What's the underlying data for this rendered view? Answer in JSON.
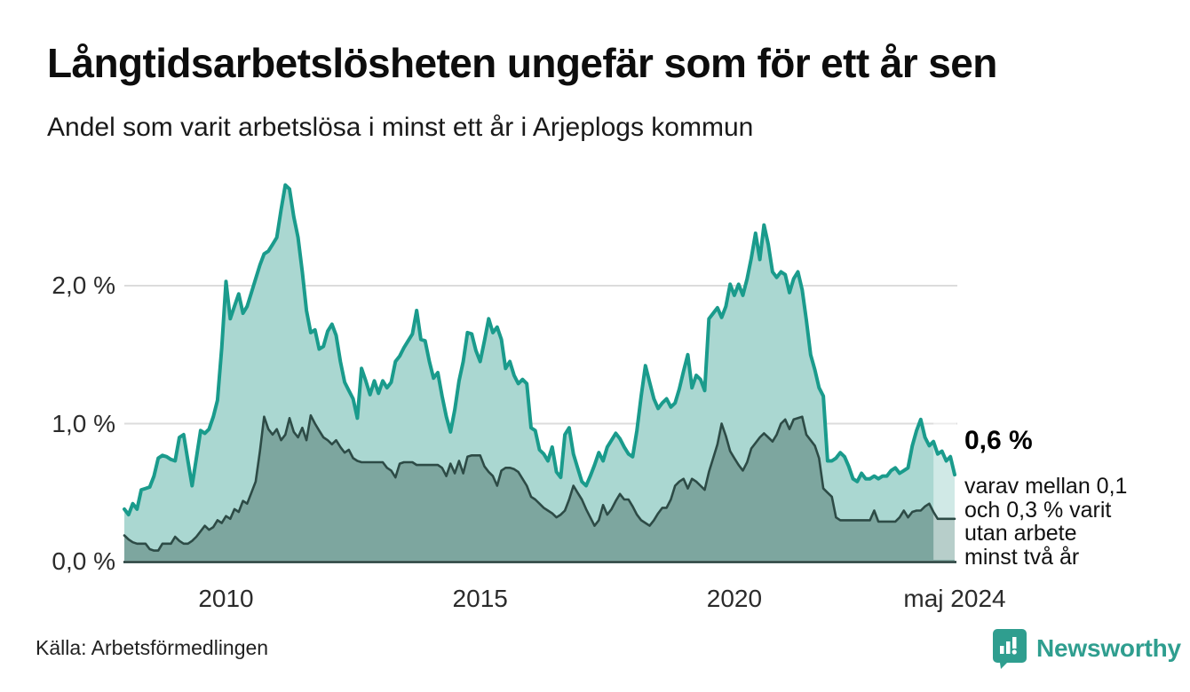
{
  "header": {
    "title": "Långtidsarbetslösheten ungefär som för ett år sen",
    "subtitle": "Andel som varit arbetslösa i minst ett år i Arjeplogs kommun"
  },
  "chart_data": {
    "type": "area",
    "interval": "monthly",
    "start": "2008-01",
    "end": "2024-05",
    "unit": "%",
    "grid": true,
    "ylim": [
      0,
      2.8
    ],
    "y_ticks": [
      {
        "label": "2,0 %",
        "value": 2.0
      },
      {
        "label": "1,0 %",
        "value": 1.0
      },
      {
        "label": "0,0 %",
        "value": 0.0
      }
    ],
    "x_ticks": [
      {
        "label": "2010",
        "index": 24
      },
      {
        "label": "2015",
        "index": 84
      },
      {
        "label": "2020",
        "index": 144
      },
      {
        "label": "maj 2024",
        "index": 196
      }
    ],
    "recent_fade_from_index": 191,
    "series": [
      {
        "name": "arbetslösa minst ett år",
        "stroke": "#1a9b8c",
        "fill": "#aad7d1",
        "values": [
          0.38,
          0.34,
          0.42,
          0.38,
          0.52,
          0.53,
          0.54,
          0.62,
          0.75,
          0.77,
          0.76,
          0.74,
          0.73,
          0.9,
          0.92,
          0.73,
          0.55,
          0.75,
          0.95,
          0.93,
          0.96,
          1.05,
          1.17,
          1.55,
          2.03,
          1.76,
          1.85,
          1.94,
          1.8,
          1.85,
          1.95,
          2.05,
          2.15,
          2.23,
          2.25,
          2.3,
          2.35,
          2.55,
          2.73,
          2.7,
          2.5,
          2.35,
          2.1,
          1.82,
          1.66,
          1.68,
          1.54,
          1.56,
          1.67,
          1.72,
          1.64,
          1.45,
          1.3,
          1.24,
          1.18,
          1.04,
          1.4,
          1.31,
          1.21,
          1.31,
          1.22,
          1.31,
          1.26,
          1.3,
          1.45,
          1.49,
          1.55,
          1.6,
          1.65,
          1.82,
          1.61,
          1.6,
          1.45,
          1.33,
          1.37,
          1.2,
          1.05,
          0.94,
          1.1,
          1.31,
          1.45,
          1.66,
          1.65,
          1.53,
          1.45,
          1.6,
          1.76,
          1.66,
          1.7,
          1.61,
          1.4,
          1.45,
          1.35,
          1.29,
          1.32,
          1.29,
          0.97,
          0.95,
          0.81,
          0.78,
          0.73,
          0.83,
          0.65,
          0.61,
          0.92,
          0.97,
          0.78,
          0.68,
          0.58,
          0.55,
          0.62,
          0.7,
          0.79,
          0.73,
          0.83,
          0.88,
          0.93,
          0.89,
          0.83,
          0.78,
          0.76,
          0.95,
          1.2,
          1.42,
          1.3,
          1.18,
          1.11,
          1.15,
          1.18,
          1.12,
          1.15,
          1.25,
          1.38,
          1.5,
          1.26,
          1.35,
          1.32,
          1.24,
          1.76,
          1.8,
          1.84,
          1.77,
          1.85,
          2.01,
          1.93,
          2.01,
          1.93,
          2.05,
          2.2,
          2.38,
          2.19,
          2.44,
          2.3,
          2.1,
          2.06,
          2.1,
          2.08,
          1.95,
          2.05,
          2.1,
          1.97,
          1.75,
          1.5,
          1.39,
          1.26,
          1.2,
          0.73,
          0.73,
          0.75,
          0.79,
          0.76,
          0.69,
          0.6,
          0.58,
          0.64,
          0.6,
          0.6,
          0.62,
          0.6,
          0.62,
          0.62,
          0.66,
          0.68,
          0.64,
          0.66,
          0.68,
          0.84,
          0.95,
          1.03,
          0.9,
          0.84,
          0.87,
          0.78,
          0.8,
          0.73,
          0.76,
          0.63
        ]
      },
      {
        "name": "arbetslösa minst två år",
        "stroke": "#2d4b46",
        "fill": "#7da69f",
        "values": [
          0.19,
          0.16,
          0.14,
          0.13,
          0.13,
          0.13,
          0.09,
          0.08,
          0.08,
          0.13,
          0.13,
          0.13,
          0.18,
          0.15,
          0.13,
          0.13,
          0.15,
          0.18,
          0.22,
          0.26,
          0.23,
          0.25,
          0.3,
          0.28,
          0.33,
          0.31,
          0.38,
          0.36,
          0.44,
          0.42,
          0.5,
          0.58,
          0.8,
          1.05,
          0.96,
          0.92,
          0.96,
          0.88,
          0.92,
          1.04,
          0.94,
          0.9,
          0.97,
          0.88,
          1.06,
          1.0,
          0.95,
          0.9,
          0.88,
          0.85,
          0.88,
          0.83,
          0.79,
          0.81,
          0.75,
          0.73,
          0.72,
          0.72,
          0.72,
          0.72,
          0.72,
          0.72,
          0.68,
          0.66,
          0.61,
          0.71,
          0.72,
          0.72,
          0.72,
          0.7,
          0.7,
          0.7,
          0.7,
          0.7,
          0.7,
          0.68,
          0.62,
          0.71,
          0.64,
          0.73,
          0.64,
          0.76,
          0.77,
          0.77,
          0.77,
          0.69,
          0.65,
          0.62,
          0.55,
          0.66,
          0.68,
          0.68,
          0.67,
          0.65,
          0.6,
          0.55,
          0.47,
          0.45,
          0.42,
          0.39,
          0.37,
          0.35,
          0.32,
          0.34,
          0.37,
          0.45,
          0.55,
          0.5,
          0.45,
          0.38,
          0.32,
          0.26,
          0.3,
          0.41,
          0.34,
          0.38,
          0.44,
          0.49,
          0.45,
          0.45,
          0.4,
          0.34,
          0.3,
          0.28,
          0.26,
          0.3,
          0.35,
          0.39,
          0.39,
          0.45,
          0.55,
          0.58,
          0.6,
          0.53,
          0.6,
          0.58,
          0.55,
          0.52,
          0.65,
          0.75,
          0.85,
          1.0,
          0.91,
          0.8,
          0.75,
          0.7,
          0.66,
          0.72,
          0.82,
          0.86,
          0.9,
          0.93,
          0.9,
          0.87,
          0.92,
          1.0,
          1.03,
          0.96,
          1.03,
          1.04,
          1.05,
          0.92,
          0.88,
          0.84,
          0.75,
          0.53,
          0.5,
          0.47,
          0.32,
          0.3,
          0.3,
          0.3,
          0.3,
          0.3,
          0.3,
          0.3,
          0.3,
          0.37,
          0.29,
          0.29,
          0.29,
          0.29,
          0.29,
          0.32,
          0.37,
          0.32,
          0.36,
          0.37,
          0.37,
          0.4,
          0.42,
          0.36,
          0.31,
          0.31,
          0.31,
          0.31,
          0.31
        ]
      }
    ]
  },
  "annotation": {
    "value": "0,6 %",
    "note": "varav mellan 0,1\noch 0,3 % varit\nutan arbete\nminst två år"
  },
  "footer": {
    "source": "Källa: Arbetsförmedlingen",
    "brand": "Newsworthy"
  },
  "colors": {
    "accent_teal": "#1a9b8c",
    "area_light": "#aad7d1",
    "dark_stroke": "#2d4b46",
    "area_dark": "#7da69f",
    "gridline": "#dcdcdc",
    "axis_line": "#1f3a36",
    "brand_teal": "#2f9e8f"
  }
}
